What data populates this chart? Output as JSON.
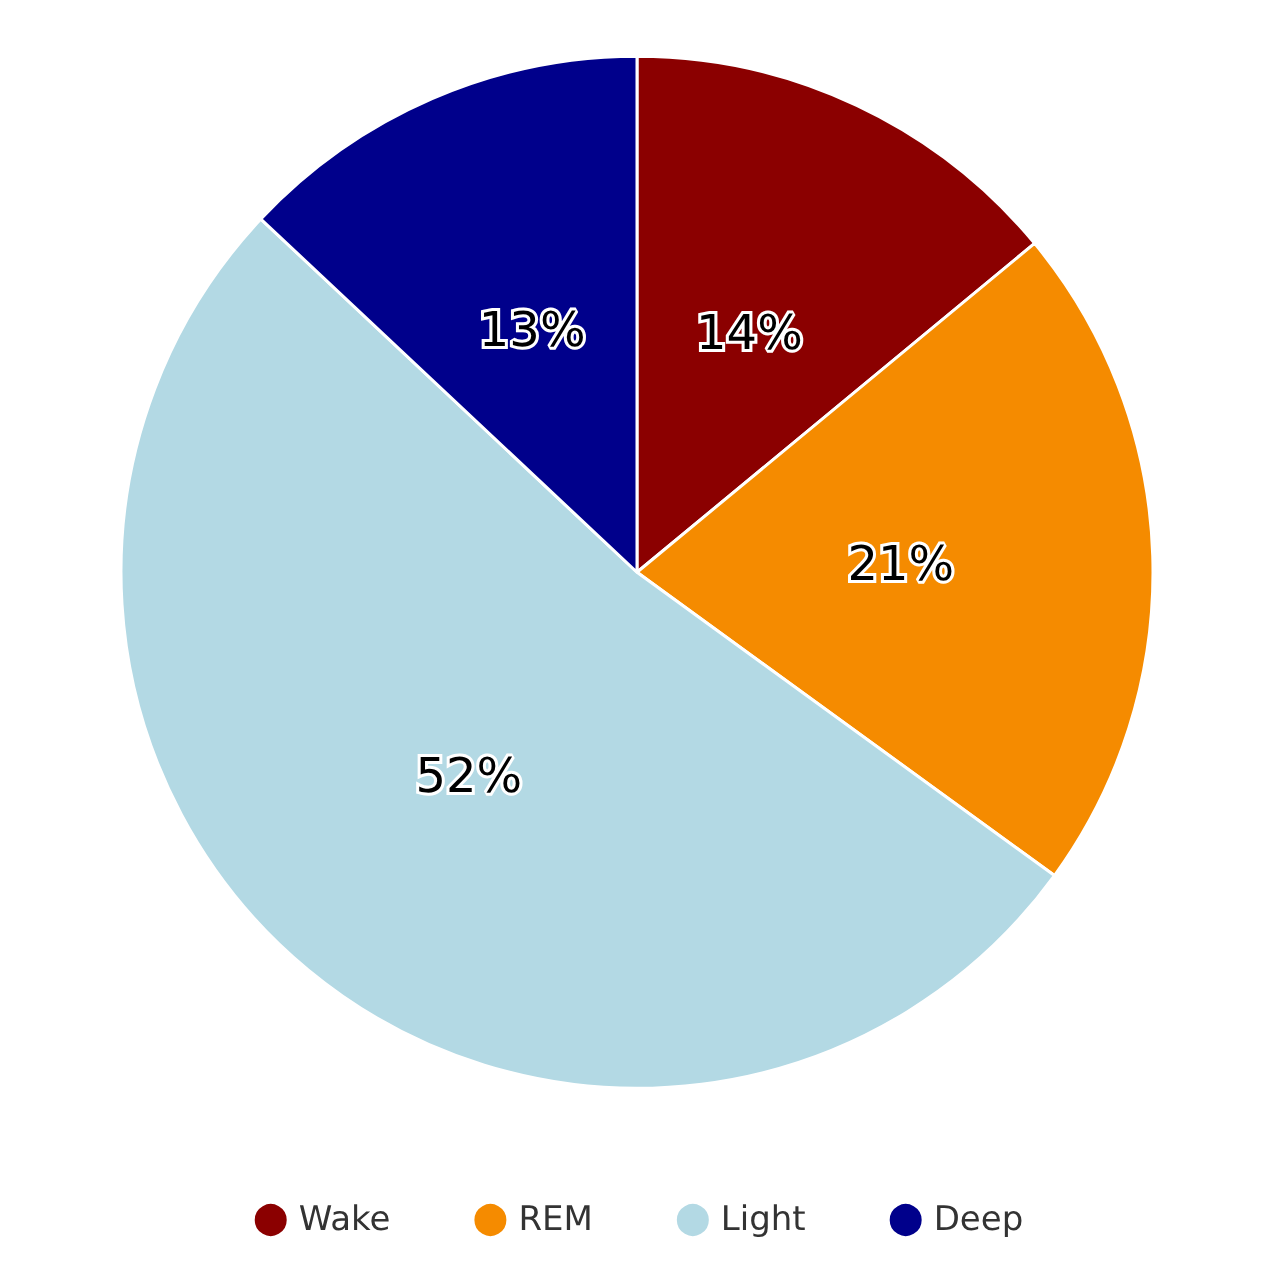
{
  "chart_data": {
    "type": "pie",
    "categories": [
      "Wake",
      "REM",
      "Light",
      "Deep"
    ],
    "values": [
      14,
      21,
      52,
      13
    ],
    "colors": [
      "#8b0000",
      "#f58b00",
      "#b3d9e4",
      "#00008b"
    ],
    "value_labels": [
      "14%",
      "21%",
      "52%",
      "13%"
    ],
    "legend": "bottom"
  }
}
